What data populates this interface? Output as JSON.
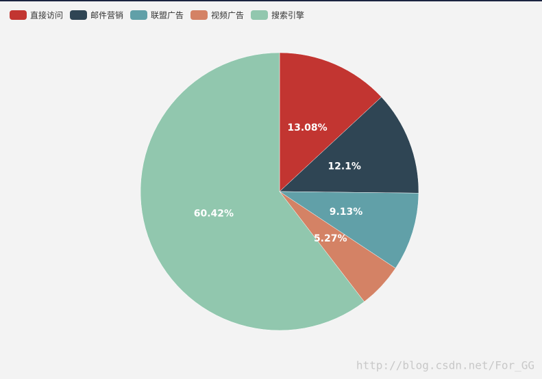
{
  "chart_data": {
    "type": "pie",
    "categories": [
      "直接访问",
      "邮件营销",
      "联盟广告",
      "视频广告",
      "搜索引擎"
    ],
    "values": [
      13.08,
      12.1,
      9.13,
      5.27,
      60.42
    ],
    "value_labels": [
      "13.08%",
      "12.1%",
      "9.13%",
      "5.27%",
      "60.42%"
    ],
    "colors": [
      "#c23531",
      "#2f4554",
      "#61a0a8",
      "#d48265",
      "#91c7ae"
    ],
    "legend": "top-left",
    "watermark": "http://blog.csdn.net/For_GG"
  }
}
